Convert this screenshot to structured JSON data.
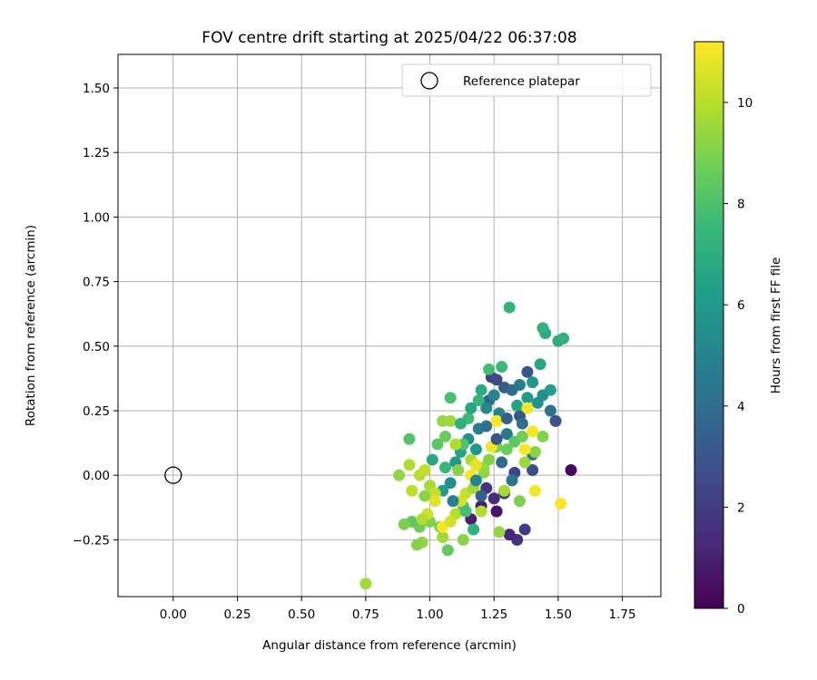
{
  "chart_data": {
    "type": "scatter",
    "title": "FOV centre drift starting at 2025/04/22 06:37:08",
    "xlabel": "Angular distance from reference (arcmin)",
    "ylabel": "Rotation from reference (arcmin)",
    "xlim": [
      -0.215,
      1.9
    ],
    "ylim": [
      -0.47,
      1.63
    ],
    "xticks": [
      0.0,
      0.25,
      0.5,
      0.75,
      1.0,
      1.25,
      1.5,
      1.75
    ],
    "xtick_labels": [
      "0.00",
      "0.25",
      "0.50",
      "0.75",
      "1.00",
      "1.25",
      "1.50",
      "1.75"
    ],
    "yticks": [
      -0.25,
      0.0,
      0.25,
      0.5,
      0.75,
      1.0,
      1.25,
      1.5
    ],
    "ytick_labels": [
      "−0.25",
      "0.00",
      "0.25",
      "0.50",
      "0.75",
      "1.00",
      "1.25",
      "1.50"
    ],
    "grid": true,
    "legend": {
      "placement": "top-right",
      "entries": [
        {
          "label": "Reference platepar",
          "marker": "open-circle"
        }
      ]
    },
    "reference_point": {
      "x": 0.0,
      "y": 0.0
    },
    "colorbar": {
      "label": "Hours from first FF file",
      "colormap": "viridis",
      "range": [
        0,
        11.2
      ],
      "ticks": [
        0,
        2,
        4,
        6,
        8,
        10
      ],
      "tick_labels": [
        "0",
        "2",
        "4",
        "6",
        "8",
        "10"
      ]
    },
    "colormap_stops": [
      "#440154",
      "#482878",
      "#3e4989",
      "#31688e",
      "#26828e",
      "#1f9e89",
      "#35b779",
      "#6ece58",
      "#b5de2b",
      "#fde725"
    ],
    "series": [
      {
        "points": [
          [
            1.55,
            0.02,
            0.3
          ],
          [
            1.37,
            -0.21,
            2.0
          ],
          [
            1.34,
            -0.25,
            1.6
          ],
          [
            1.31,
            -0.23,
            1.2
          ],
          [
            1.26,
            -0.14,
            0.6
          ],
          [
            1.16,
            -0.17,
            1.0
          ],
          [
            1.2,
            -0.12,
            0.9
          ],
          [
            1.25,
            -0.09,
            1.4
          ],
          [
            1.22,
            -0.05,
            1.7
          ],
          [
            1.29,
            -0.07,
            2.1
          ],
          [
            1.33,
            0.01,
            2.4
          ],
          [
            1.4,
            0.02,
            2.7
          ],
          [
            1.49,
            0.21,
            2.8
          ],
          [
            1.35,
            0.23,
            3.0
          ],
          [
            1.24,
            0.38,
            2.2
          ],
          [
            1.26,
            0.37,
            2.5
          ],
          [
            1.29,
            0.34,
            3.3
          ],
          [
            1.23,
            0.29,
            3.6
          ],
          [
            1.38,
            0.4,
            3.0
          ],
          [
            1.32,
            0.33,
            3.9
          ],
          [
            1.36,
            0.2,
            4.0
          ],
          [
            1.4,
            0.08,
            4.3
          ],
          [
            1.3,
            0.16,
            4.6
          ],
          [
            1.27,
            0.24,
            5.0
          ],
          [
            1.22,
            0.26,
            5.3
          ],
          [
            1.19,
            0.18,
            4.8
          ],
          [
            1.15,
            0.14,
            5.6
          ],
          [
            1.1,
            0.05,
            5.9
          ],
          [
            1.05,
            -0.06,
            6.2
          ],
          [
            1.08,
            -0.03,
            5.5
          ],
          [
            1.12,
            0.09,
            6.5
          ],
          [
            1.45,
            0.55,
            6.8
          ],
          [
            1.5,
            0.52,
            7.0
          ],
          [
            1.52,
            0.53,
            7.1
          ],
          [
            1.44,
            0.57,
            7.2
          ],
          [
            1.43,
            0.43,
            6.6
          ],
          [
            1.47,
            0.33,
            6.3
          ],
          [
            1.42,
            0.28,
            5.8
          ],
          [
            1.38,
            0.3,
            6.1
          ],
          [
            1.34,
            0.27,
            6.4
          ],
          [
            1.31,
            0.65,
            7.3
          ],
          [
            1.28,
            0.42,
            7.6
          ],
          [
            1.23,
            0.41,
            7.8
          ],
          [
            1.19,
            0.29,
            7.4
          ],
          [
            1.15,
            0.22,
            7.7
          ],
          [
            1.13,
            0.12,
            8.0
          ],
          [
            1.06,
            0.03,
            7.5
          ],
          [
            1.08,
            0.3,
            7.9
          ],
          [
            1.17,
            -0.21,
            7.2
          ],
          [
            1.13,
            -0.12,
            8.2
          ],
          [
            1.07,
            -0.29,
            8.5
          ],
          [
            1.04,
            -0.2,
            8.8
          ],
          [
            1.0,
            -0.18,
            9.0
          ],
          [
            0.96,
            -0.2,
            8.7
          ],
          [
            0.93,
            -0.18,
            8.4
          ],
          [
            0.9,
            -0.19,
            8.9
          ],
          [
            0.97,
            -0.26,
            9.3
          ],
          [
            0.95,
            -0.27,
            9.1
          ],
          [
            1.05,
            -0.24,
            9.6
          ],
          [
            1.13,
            -0.25,
            9.2
          ],
          [
            1.27,
            -0.22,
            9.4
          ],
          [
            1.35,
            -0.1,
            9.0
          ],
          [
            1.29,
            -0.06,
            9.7
          ],
          [
            1.21,
            0.03,
            9.5
          ],
          [
            1.16,
            0.06,
            9.8
          ],
          [
            1.1,
            0.12,
            9.9
          ],
          [
            1.05,
            0.21,
            9.4
          ],
          [
            1.08,
            0.21,
            9.6
          ],
          [
            0.92,
            0.14,
            8.1
          ],
          [
            0.88,
            0.0,
            9.3
          ],
          [
            0.92,
            0.04,
            9.8
          ],
          [
            0.96,
            0.0,
            10.0
          ],
          [
            0.98,
            0.02,
            10.2
          ],
          [
            1.0,
            -0.04,
            9.7
          ],
          [
            1.02,
            -0.07,
            10.3
          ],
          [
            0.93,
            -0.06,
            10.1
          ],
          [
            0.99,
            -0.15,
            10.4
          ],
          [
            0.97,
            -0.17,
            9.9
          ],
          [
            1.1,
            -0.15,
            10.0
          ],
          [
            1.12,
            -0.1,
            10.5
          ],
          [
            1.14,
            -0.07,
            10.2
          ],
          [
            1.17,
            -0.05,
            9.6
          ],
          [
            1.21,
            0.01,
            9.3
          ],
          [
            1.23,
            0.06,
            9.1
          ],
          [
            1.26,
            0.11,
            8.9
          ],
          [
            1.3,
            0.1,
            8.6
          ],
          [
            1.33,
            0.13,
            8.3
          ],
          [
            1.36,
            0.15,
            8.7
          ],
          [
            1.44,
            0.15,
            9.0
          ],
          [
            1.41,
            0.09,
            9.2
          ],
          [
            1.37,
            0.05,
            9.5
          ],
          [
            0.75,
            -0.42,
            9.6
          ],
          [
            1.38,
            0.26,
            11.0
          ],
          [
            1.4,
            0.17,
            11.1
          ],
          [
            1.26,
            0.21,
            11.2
          ],
          [
            1.24,
            0.11,
            11.0
          ],
          [
            1.37,
            0.1,
            11.1
          ],
          [
            1.41,
            -0.06,
            11.0
          ],
          [
            1.51,
            -0.11,
            11.2
          ],
          [
            1.16,
            0.0,
            11.1
          ],
          [
            1.05,
            -0.2,
            11.2
          ],
          [
            1.18,
            0.04,
            10.8
          ],
          [
            1.2,
            0.33,
            6.9
          ],
          [
            1.25,
            0.31,
            5.2
          ],
          [
            1.28,
            0.05,
            3.8
          ],
          [
            1.32,
            -0.02,
            4.4
          ],
          [
            1.2,
            -0.08,
            3.4
          ],
          [
            1.09,
            -0.1,
            4.9
          ],
          [
            1.18,
            0.1,
            6.0
          ],
          [
            1.12,
            0.2,
            7.1
          ],
          [
            1.16,
            0.26,
            6.6
          ],
          [
            1.35,
            0.35,
            4.7
          ],
          [
            1.4,
            0.36,
            6.0
          ],
          [
            1.44,
            0.31,
            5.6
          ],
          [
            1.47,
            0.25,
            4.2
          ],
          [
            1.3,
            0.22,
            3.5
          ],
          [
            1.26,
            0.14,
            2.9
          ],
          [
            1.22,
            0.19,
            4.1
          ],
          [
            1.18,
            -0.02,
            5.1
          ],
          [
            1.14,
            -0.14,
            7.8
          ],
          [
            1.03,
            0.12,
            8.3
          ],
          [
            1.01,
            0.06,
            6.7
          ],
          [
            1.06,
            0.15,
            8.6
          ],
          [
            1.11,
            0.02,
            9.1
          ],
          [
            1.2,
            -0.14,
            9.9
          ],
          [
            1.08,
            -0.18,
            10.4
          ],
          [
            1.02,
            -0.1,
            10.7
          ],
          [
            0.98,
            -0.08,
            9.2
          ]
        ]
      }
    ]
  }
}
